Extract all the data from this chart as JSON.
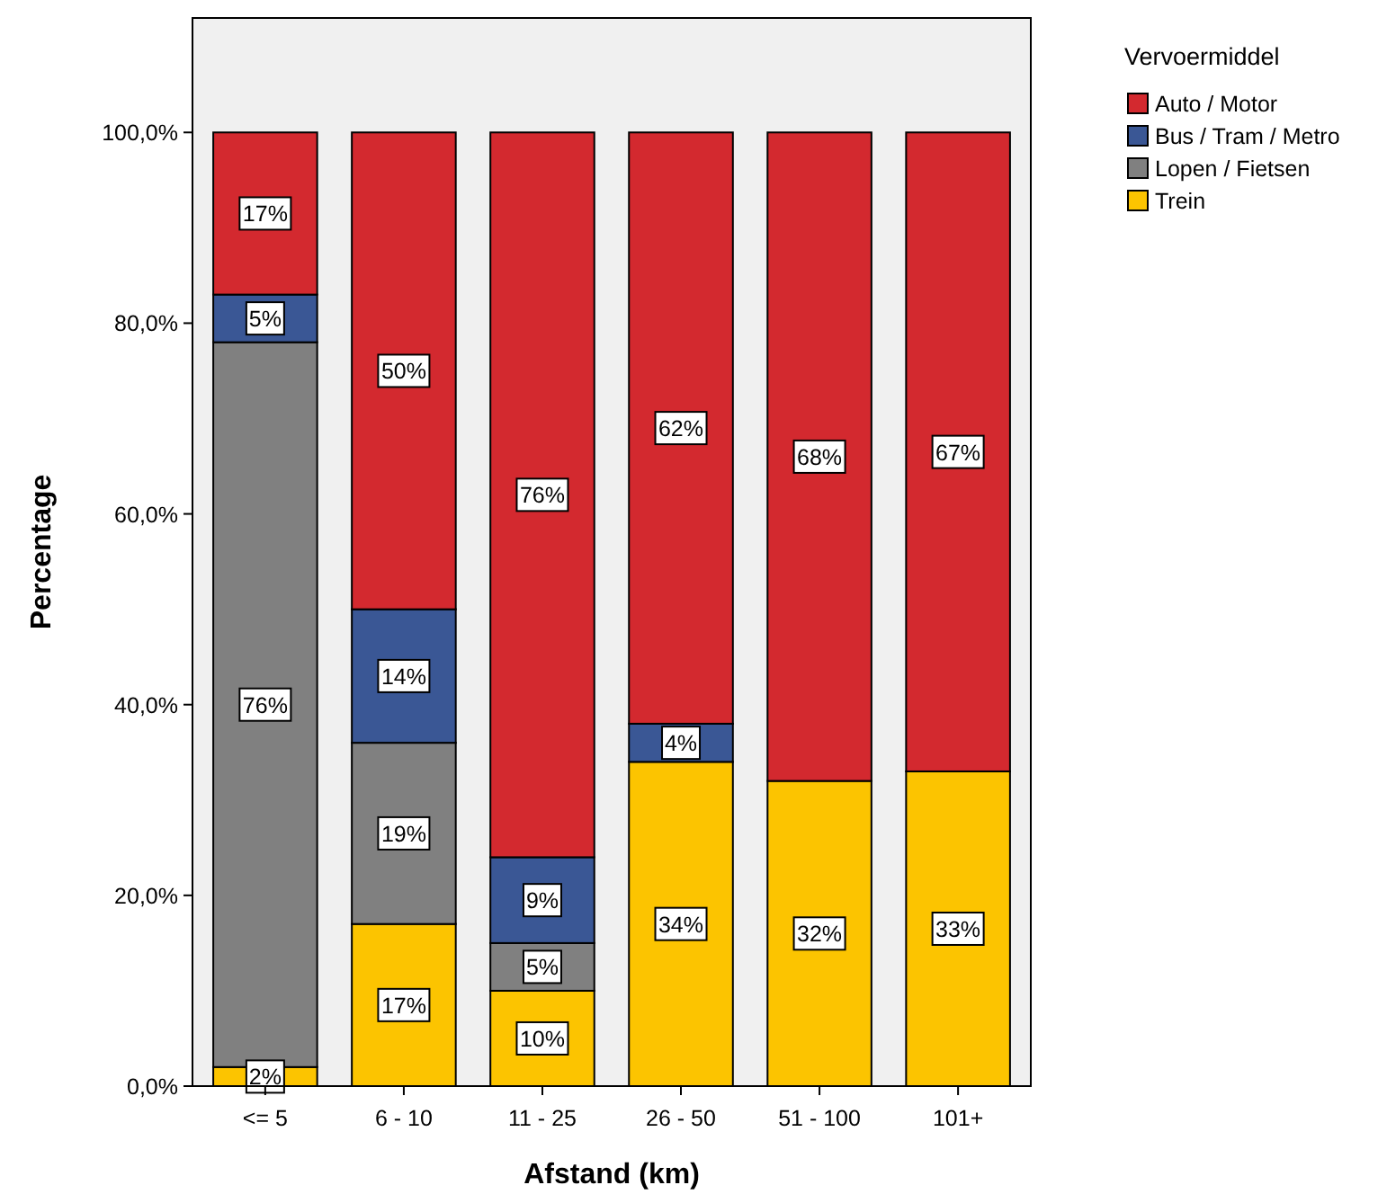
{
  "chart_data": {
    "type": "bar",
    "stacked": true,
    "xlabel": "Afstand (km)",
    "ylabel": "Percentage",
    "legend_title": "Vervoermiddel",
    "legend": "right",
    "grid": false,
    "categories": [
      "<= 5",
      "6 - 10",
      "11 - 25",
      "26 - 50",
      "51 - 100",
      "101+"
    ],
    "ylim": [
      0,
      112
    ],
    "yticks": [
      {
        "value": 0,
        "label": "0,0%"
      },
      {
        "value": 20,
        "label": "20,0%"
      },
      {
        "value": 40,
        "label": "40,0%"
      },
      {
        "value": 60,
        "label": "60,0%"
      },
      {
        "value": 80,
        "label": "80,0%"
      },
      {
        "value": 100,
        "label": "100,0%"
      }
    ],
    "series": [
      {
        "name": "Trein",
        "color": "#fcc400",
        "values": [
          2,
          17,
          10,
          34,
          32,
          33
        ],
        "value_labels": [
          "2%",
          "17%",
          "10%",
          "34%",
          "32%",
          "33%"
        ]
      },
      {
        "name": "Lopen / Fietsen",
        "color": "#808080",
        "values": [
          76,
          19,
          5,
          0,
          0,
          0
        ],
        "value_labels": [
          "76%",
          "19%",
          "5%",
          null,
          null,
          null
        ]
      },
      {
        "name": "Bus / Tram / Metro",
        "color": "#3a5795",
        "values": [
          5,
          14,
          9,
          4,
          0,
          0
        ],
        "value_labels": [
          "5%",
          "14%",
          "9%",
          "4%",
          null,
          null
        ]
      },
      {
        "name": "Auto / Motor",
        "color": "#d3292f",
        "values": [
          17,
          50,
          76,
          62,
          68,
          67
        ],
        "value_labels": [
          "17%",
          "50%",
          "76%",
          "62%",
          "68%",
          "67%"
        ]
      }
    ]
  }
}
